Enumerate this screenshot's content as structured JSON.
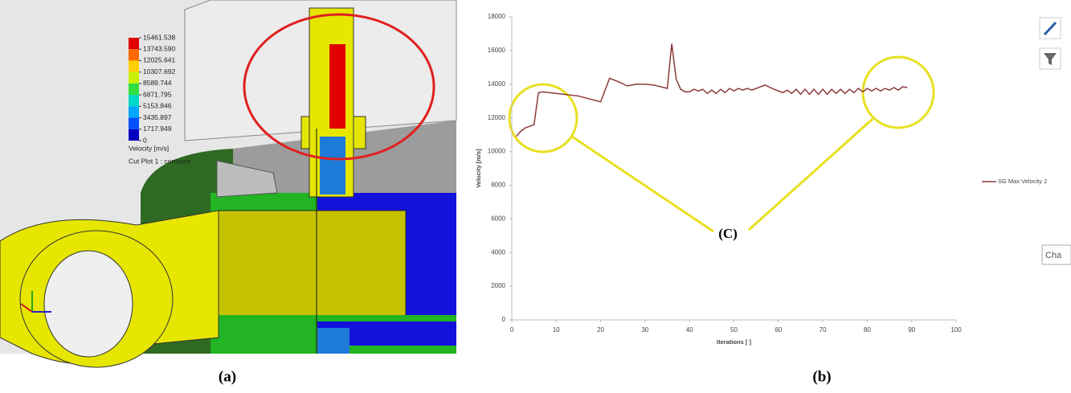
{
  "chart_data": [
    {
      "type": "colorbar",
      "title": "Velocity [m/s]",
      "subtitle": "Cut Plot 1 : contours",
      "ticks": [
        15461.538,
        {
          "value": 13743.59,
          "label": "13743.590"
        },
        12025.641,
        10307.692,
        8589.744,
        6871.795,
        5153.846,
        3435.897,
        1717.949,
        0
      ],
      "colors": [
        "#e00000",
        "#ff6a00",
        "#ffd000",
        "#c8f000",
        "#30e040",
        "#00d8c8",
        "#00a8ff",
        "#0050ff",
        "#0000c0"
      ]
    },
    {
      "type": "line",
      "xlabel": "Iterations [ ]",
      "ylabel": "Velocity [m/s]",
      "x": [
        1,
        2,
        3,
        4,
        5,
        6,
        7,
        10,
        15,
        20,
        22,
        24,
        26,
        28,
        30,
        32,
        35,
        36,
        37,
        38,
        39,
        40,
        41,
        42,
        43,
        44,
        45,
        46,
        47,
        48,
        49,
        50,
        51,
        52,
        53,
        54,
        55,
        57,
        59,
        61,
        62,
        63,
        64,
        65,
        66,
        67,
        68,
        69,
        70,
        71,
        72,
        73,
        74,
        75,
        76,
        77,
        78,
        79,
        80,
        81,
        82,
        83,
        84,
        85,
        86,
        87,
        88,
        89
      ],
      "series": [
        {
          "name": "SG Max Velocity 2",
          "color": "#8b3a3a",
          "values": [
            10900,
            11200,
            11400,
            11500,
            11600,
            13500,
            13550,
            13450,
            13300,
            12950,
            14350,
            14150,
            13900,
            14000,
            14000,
            13950,
            13750,
            16400,
            14300,
            13700,
            13550,
            13550,
            13700,
            13600,
            13700,
            13450,
            13650,
            13450,
            13700,
            13500,
            13750,
            13600,
            13750,
            13650,
            13750,
            13650,
            13750,
            13950,
            13700,
            13500,
            13650,
            13450,
            13700,
            13400,
            13700,
            13400,
            13700,
            13400,
            13700,
            13400,
            13700,
            13450,
            13700,
            13450,
            13700,
            13500,
            13750,
            13550,
            13750,
            13600,
            13750,
            13600,
            13750,
            13650,
            13800,
            13650,
            13850,
            13800
          ]
        }
      ],
      "xlim": [
        0,
        100
      ],
      "xticks": [
        0,
        10,
        20,
        30,
        40,
        50,
        60,
        70,
        80,
        90,
        100
      ],
      "ylim": [
        0,
        18000
      ],
      "yticks": [
        0,
        2000,
        4000,
        6000,
        8000,
        10000,
        12000,
        14000,
        16000,
        18000
      ],
      "grid": false,
      "legend": "right",
      "annotation": "(C)"
    }
  ],
  "captions": [
    "(a)",
    "(b)"
  ],
  "toolbar": {
    "button": "Cha"
  }
}
